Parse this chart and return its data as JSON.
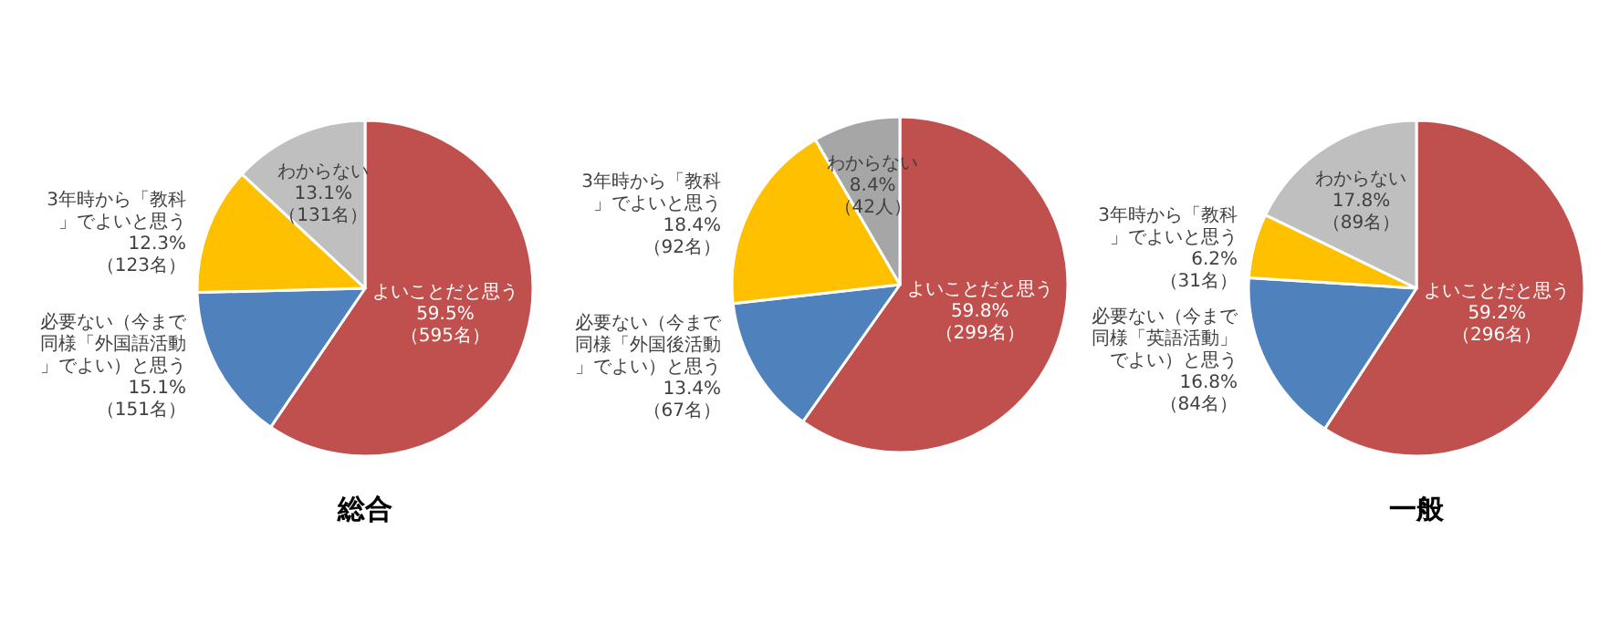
{
  "chart_data": [
    {
      "type": "pie",
      "title": "総合",
      "categories": [
        "よいことだと思う",
        "必要ない（今まで同様「外国語活動」でよい）と思う",
        "3年時から「教科」でよいと思う",
        "わからない"
      ],
      "values": [
        59.5,
        15.1,
        12.3,
        13.1
      ],
      "value_labels": [
        "59.5% （595名）",
        "15.1% （151名）",
        "12.3% （123名）",
        "13.1% （131名）"
      ],
      "colors": [
        "#c0504d",
        "#4f81bd",
        "#ffc000",
        "#bfbfbf"
      ]
    },
    {
      "type": "pie",
      "categories": [
        "よいことだと思う",
        "必要ない（今まで同様「外国後活動」でよい）と思う",
        "3年時から「教科」でよいと思う",
        "わからない"
      ],
      "values": [
        59.8,
        13.4,
        18.4,
        8.4
      ],
      "value_labels": [
        "59.8% （299名）",
        "13.4% （67名）",
        "18.4% （92名）",
        "8.4% （42人）"
      ],
      "colors": [
        "#c0504d",
        "#4f81bd",
        "#ffc000",
        "#a6a6a6"
      ]
    },
    {
      "type": "pie",
      "title": "一般",
      "categories": [
        "よいことだと思う",
        "必要ない（今まで同様「英語活動」でよい）と思う",
        "3年時から「教科」でよいと思う",
        "わからない"
      ],
      "values": [
        59.2,
        16.8,
        6.2,
        17.8
      ],
      "value_labels": [
        "59.2% （296名）",
        "16.8% （84名）",
        "6.2% （31名）",
        "17.8% （89名）"
      ],
      "colors": [
        "#c0504d",
        "#4f81bd",
        "#ffc000",
        "#bfbfbf"
      ]
    }
  ]
}
